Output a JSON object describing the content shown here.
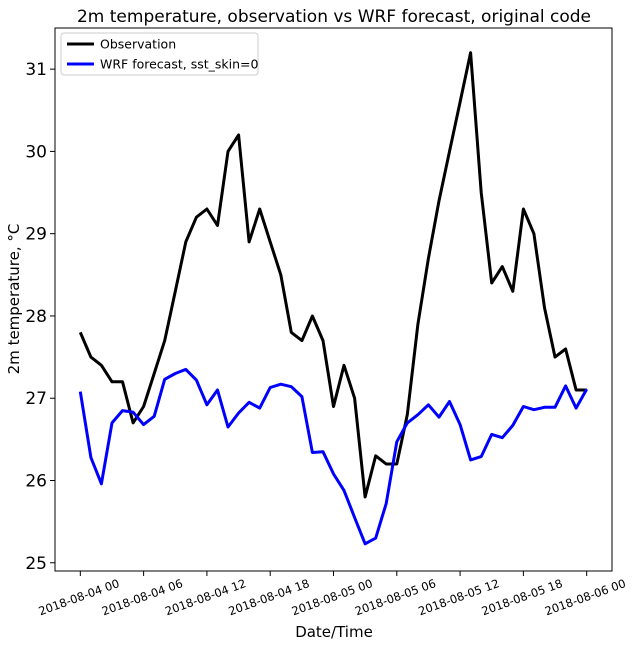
{
  "chart_data": {
    "type": "line",
    "title": "2m temperature, observation vs WRF forecast, original code",
    "xlabel": "Date/Time",
    "ylabel": "2m temperature, °C",
    "x_tick_labels": [
      "2018-08-04 00",
      "2018-08-04 06",
      "2018-08-04 12",
      "2018-08-04 18",
      "2018-08-05 00",
      "2018-08-05 06",
      "2018-08-05 12",
      "2018-08-05 18",
      "2018-08-06 00"
    ],
    "y_ticks": [
      25,
      26,
      27,
      28,
      29,
      30,
      31
    ],
    "ylim": [
      24.9,
      31.5
    ],
    "x_hours_range": [
      -2.4,
      50.4
    ],
    "grid": false,
    "legend_position": "top-left",
    "series": [
      {
        "name": "Observation",
        "color": "#000000",
        "hours": [
          0,
          1,
          2,
          3,
          4,
          5,
          6,
          7,
          8,
          9,
          10,
          11,
          12,
          13,
          14,
          15,
          16,
          17,
          18,
          19,
          20,
          21,
          22,
          23,
          24,
          25,
          26,
          27,
          28,
          29,
          30,
          31,
          32,
          33,
          34,
          35,
          36,
          37,
          38,
          39,
          40,
          41,
          42,
          43,
          44,
          45,
          46,
          47,
          48
        ],
        "values": [
          27.8,
          27.5,
          27.4,
          27.2,
          27.2,
          26.7,
          26.9,
          27.3,
          27.7,
          28.3,
          28.9,
          29.2,
          29.3,
          29.1,
          30.0,
          30.2,
          28.9,
          29.3,
          28.9,
          28.5,
          27.8,
          27.7,
          28.0,
          27.7,
          26.9,
          27.4,
          27.0,
          25.8,
          26.3,
          26.2,
          26.2,
          26.8,
          27.9,
          28.7,
          29.4,
          30.0,
          30.6,
          31.2,
          29.5,
          28.4,
          28.6,
          28.3,
          29.3,
          29.0,
          28.1,
          27.5,
          27.6,
          27.1,
          27.1
        ]
      },
      {
        "name": "WRF forecast, sst_skin=0",
        "color": "#0000ff",
        "hours": [
          0,
          1,
          2,
          3,
          4,
          5,
          6,
          7,
          8,
          9,
          10,
          11,
          12,
          13,
          14,
          15,
          16,
          17,
          18,
          19,
          20,
          21,
          22,
          23,
          24,
          25,
          26,
          27,
          28,
          29,
          30,
          31,
          32,
          33,
          34,
          35,
          36,
          37,
          38,
          39,
          40,
          41,
          42,
          43,
          44,
          45,
          46,
          47,
          48
        ],
        "values": [
          27.08,
          26.28,
          25.96,
          26.7,
          26.85,
          26.83,
          26.68,
          26.78,
          27.23,
          27.3,
          27.35,
          27.22,
          26.92,
          27.1,
          26.65,
          26.82,
          26.95,
          26.88,
          27.13,
          27.17,
          27.14,
          27.02,
          26.34,
          26.35,
          26.08,
          25.88,
          25.55,
          25.23,
          25.3,
          25.72,
          26.47,
          26.7,
          26.8,
          26.92,
          26.77,
          26.96,
          26.68,
          26.25,
          26.29,
          26.56,
          26.52,
          26.67,
          26.9,
          26.86,
          26.89,
          26.89,
          27.15,
          26.88,
          27.11
        ]
      }
    ]
  }
}
